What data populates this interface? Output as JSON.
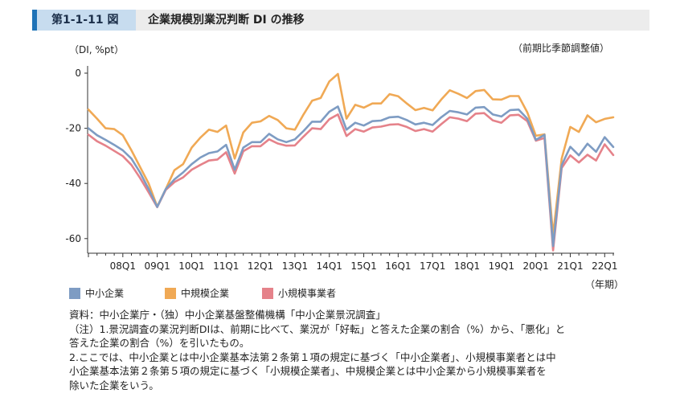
{
  "figure": {
    "number": "第1-1-11 図",
    "title": "企業規模別業況判断 DI の推移"
  },
  "colors": {
    "small_medium": "#7e9cc3",
    "medium": "#f0a955",
    "small": "#e5828a"
  },
  "notes": [
    "資料：中小企業庁・（独）中小企業基盤整備機構「中小企業景況調査」",
    "（注）1.景況調査の業況判断DIは、前期に比べて、業況が「好転」と答えた企業の割合（%）から、「悪化」と",
    "答えた企業の割合（%）を引いたもの。",
    "2.ここでは、中小企業とは中小企業基本法第２条第１項の規定に基づく「中小企業者」、小規模事業者とは中",
    "小企業基本法第２条第５項の規定に基づく「小規模企業者」、中規模企業とは中小企業から小規模事業者を",
    "除いた企業をいう。"
  ],
  "chart_data": {
    "type": "line",
    "ylabel": "（DI, %pt）",
    "note_top_right": "（前期比季節調整値）",
    "xlabel": "（年期）",
    "ylim": [
      -68,
      1
    ],
    "yticks": [
      0,
      -20,
      -40,
      -60
    ],
    "ytick_labels": [
      "0",
      "-20",
      "-40",
      "-60"
    ],
    "x_tick_labels": [
      "08Q1",
      "09Q1",
      "10Q1",
      "11Q1",
      "12Q1",
      "13Q1",
      "14Q1",
      "15Q1",
      "16Q1",
      "17Q1",
      "18Q1",
      "19Q1",
      "20Q1",
      "21Q1",
      "22Q1"
    ],
    "x_start": "2007Q1",
    "x_end": "2022Q2",
    "legend_position": "bottom-left",
    "grid": false,
    "series": [
      {
        "name": "中小企業",
        "color_key": "small_medium",
        "values": [
          -20,
          -22.5,
          -24.2,
          -26,
          -28,
          -31,
          -36,
          -42,
          -48.5,
          -42,
          -38.5,
          -36,
          -33,
          -30.6,
          -29,
          -28.4,
          -26,
          -35,
          -27,
          -25,
          -25,
          -22,
          -24,
          -25,
          -24,
          -21,
          -17.6,
          -17.6,
          -14,
          -12.1,
          -20.5,
          -18,
          -19,
          -17.4,
          -17.2,
          -16,
          -15.8,
          -17,
          -18.6,
          -18,
          -18.8,
          -16,
          -13.7,
          -14.2,
          -15,
          -12.5,
          -12.3,
          -15,
          -15.7,
          -13.4,
          -13.2,
          -16.5,
          -24.2,
          -22.4,
          -62.7,
          -33.4,
          -26.7,
          -29.8,
          -25.6,
          -28.5,
          -23.2,
          -26.8
        ]
      },
      {
        "name": "中規模企業",
        "color_key": "medium",
        "values": [
          -13.2,
          -16.5,
          -20,
          -20.3,
          -22.5,
          -28,
          -34,
          -40,
          -48.4,
          -42,
          -35.2,
          -33,
          -27,
          -23.4,
          -20.5,
          -21.3,
          -19,
          -31,
          -21.5,
          -18,
          -17.5,
          -15.5,
          -17,
          -20,
          -20.5,
          -15,
          -10,
          -9,
          -3,
          -0.3,
          -16.5,
          -11.5,
          -12.5,
          -11,
          -11,
          -7.6,
          -8.4,
          -11,
          -13.4,
          -12.6,
          -13.5,
          -9.6,
          -6.2,
          -7.5,
          -9,
          -6.5,
          -6.1,
          -9.5,
          -9.6,
          -8.3,
          -8.3,
          -14.2,
          -22.7,
          -22.2,
          -58.8,
          -31,
          -19.5,
          -21.3,
          -15.3,
          -17.8,
          -16.6,
          -16
        ]
      },
      {
        "name": "小規模事業者",
        "color_key": "small",
        "values": [
          -22.3,
          -24.7,
          -26.3,
          -28.2,
          -30.1,
          -33.3,
          -38,
          -43.2,
          -48.6,
          -42.3,
          -39.5,
          -37.8,
          -35,
          -33.3,
          -31.7,
          -31.3,
          -28.7,
          -36.4,
          -28.3,
          -26.5,
          -26.5,
          -24,
          -25.5,
          -26.3,
          -26.2,
          -23,
          -20,
          -20.3,
          -16.7,
          -15,
          -22.8,
          -20.3,
          -21.2,
          -19.7,
          -19.4,
          -18.7,
          -18.5,
          -19.5,
          -21,
          -20.3,
          -21.2,
          -18.5,
          -16,
          -16.5,
          -17.4,
          -14.7,
          -14.5,
          -17.1,
          -18,
          -15.3,
          -15.1,
          -17.4,
          -24.5,
          -23.5,
          -64.3,
          -34.4,
          -29.8,
          -32.4,
          -29.6,
          -31.7,
          -25.8,
          -29.7
        ]
      }
    ]
  }
}
